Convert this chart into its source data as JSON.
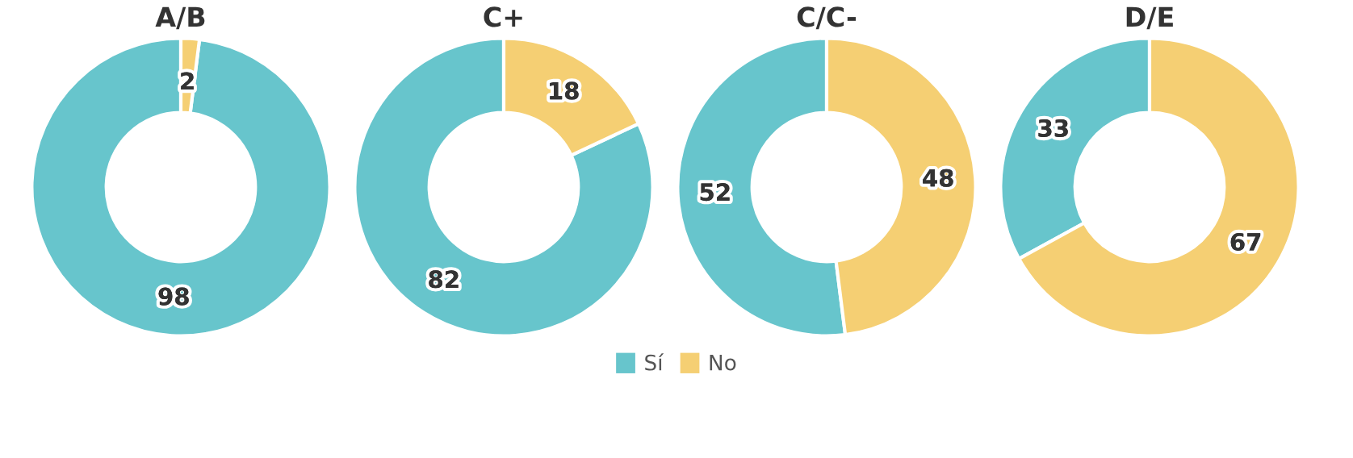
{
  "chart_data": [
    {
      "type": "donut",
      "title": "A/B",
      "categories": [
        "Sí",
        "No"
      ],
      "values": [
        98,
        2
      ],
      "colors": [
        "#67c5cc",
        "#f5cf73"
      ],
      "data_labels": true,
      "legend": "bottom"
    },
    {
      "type": "donut",
      "title": "C+",
      "categories": [
        null,
        null
      ],
      "values": [
        82,
        18
      ],
      "colors": [
        "#67c5cc",
        "#f5cf73"
      ],
      "data_labels": true
    },
    {
      "type": "donut",
      "title": "C/C-",
      "categories": [
        null,
        null
      ],
      "values": [
        52,
        48
      ],
      "colors": [
        "#67c5cc",
        "#f5cf73"
      ],
      "data_labels": true
    },
    {
      "type": "donut",
      "title": "D/E",
      "categories": [
        null,
        null
      ],
      "values": [
        33,
        67
      ],
      "colors": [
        "#67c5cc",
        "#f5cf73"
      ],
      "data_labels": true
    }
  ]
}
